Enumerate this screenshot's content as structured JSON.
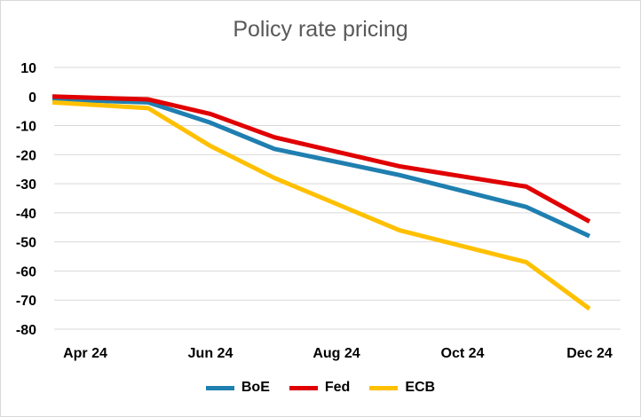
{
  "chart_data": {
    "type": "line",
    "title": "Policy rate pricing",
    "xlabel": "",
    "ylabel": "",
    "x": [
      "Mar 24",
      "May 24",
      "Jun 24",
      "Jul 24",
      "Sep 24",
      "Nov 24",
      "Dec 24"
    ],
    "x_tick_labels": [
      "Apr 24",
      "Jun 24",
      "Aug 24",
      "Oct 24",
      "Dec 24"
    ],
    "y_ticks": [
      10,
      0,
      -10,
      -20,
      -30,
      -40,
      -50,
      -60,
      -70,
      -80
    ],
    "ylim": [
      -80,
      10
    ],
    "grid": true,
    "legend_position": "bottom",
    "series": [
      {
        "name": "BoE",
        "color": "#1f7fb0",
        "values": [
          -1,
          -2,
          -9,
          -18,
          -27,
          -38,
          -48
        ]
      },
      {
        "name": "Fed",
        "color": "#e00000",
        "values": [
          0,
          -1,
          -6,
          -14,
          -24,
          -31,
          -43
        ]
      },
      {
        "name": "ECB",
        "color": "#ffc000",
        "values": [
          -2,
          -4,
          -17,
          -28,
          -46,
          -57,
          -73
        ]
      }
    ]
  }
}
